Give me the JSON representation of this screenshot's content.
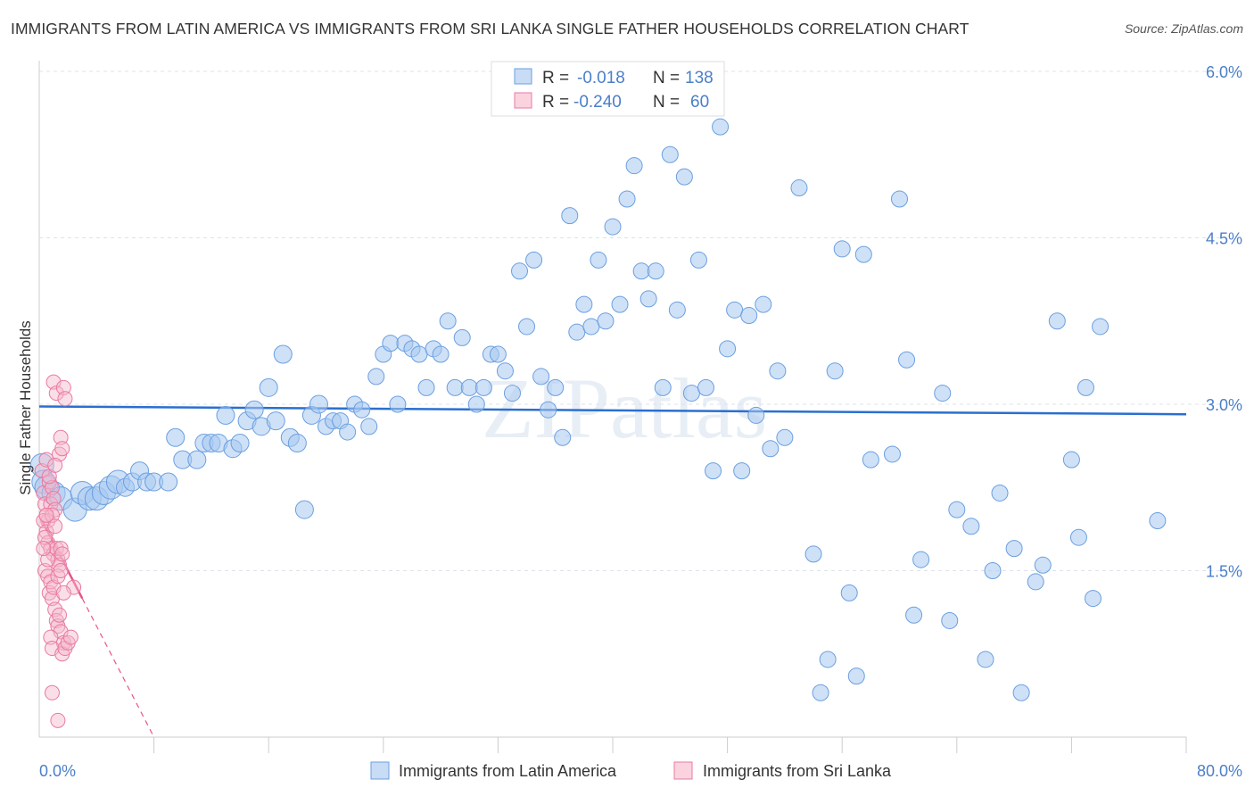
{
  "title": "IMMIGRANTS FROM LATIN AMERICA VS IMMIGRANTS FROM SRI LANKA SINGLE FATHER HOUSEHOLDS CORRELATION CHART",
  "source": "Source: ZipAtlas.com",
  "watermark": "ZIPatlas",
  "colors": {
    "blue": "#6a9fe0",
    "blue_fill": "#a8c8f0",
    "pink": "#e97aa0",
    "pink_fill": "#f5b8cc",
    "axis_text": "#4a7fc8"
  },
  "legend": {
    "blue": {
      "r_label": "R =",
      "r_value": "-0.018",
      "n_label": "N =",
      "n_value": "138"
    },
    "pink": {
      "r_label": "R =",
      "r_value": "-0.240",
      "n_label": "N =",
      "n_value": "60"
    }
  },
  "chart_data": {
    "type": "scatter",
    "title": "IMMIGRANTS FROM LATIN AMERICA VS IMMIGRANTS FROM SRI LANKA SINGLE FATHER HOUSEHOLDS CORRELATION CHART",
    "xlabel": "",
    "ylabel": "Single Father Households",
    "xlim": [
      0,
      80
    ],
    "ylim": [
      0,
      6.0
    ],
    "x_ticks": [
      "0.0%",
      "80.0%"
    ],
    "y_ticks": [
      {
        "value": 1.5,
        "label": "1.5%"
      },
      {
        "value": 3.0,
        "label": "3.0%"
      },
      {
        "value": 4.5,
        "label": "4.5%"
      },
      {
        "value": 6.0,
        "label": "6.0%"
      }
    ],
    "grid": true,
    "legend_position": "top-center",
    "series": [
      {
        "name": "Immigrants from Latin America",
        "color": "#6a9fe0",
        "trend": {
          "x": [
            0,
            80
          ],
          "y": [
            2.98,
            2.91
          ]
        },
        "points": [
          [
            0.2,
            2.45
          ],
          [
            0.3,
            2.3
          ],
          [
            0.5,
            2.25
          ],
          [
            1.0,
            2.2
          ],
          [
            1.5,
            2.15
          ],
          [
            2.5,
            2.05
          ],
          [
            3.0,
            2.2
          ],
          [
            3.5,
            2.15
          ],
          [
            4.0,
            2.15
          ],
          [
            4.5,
            2.2
          ],
          [
            5.0,
            2.25
          ],
          [
            5.5,
            2.3
          ],
          [
            6.0,
            2.25
          ],
          [
            6.5,
            2.3
          ],
          [
            7.0,
            2.4
          ],
          [
            7.5,
            2.3
          ],
          [
            8.0,
            2.3
          ],
          [
            9.0,
            2.3
          ],
          [
            9.5,
            2.7
          ],
          [
            10.0,
            2.5
          ],
          [
            11.0,
            2.5
          ],
          [
            11.5,
            2.65
          ],
          [
            12.0,
            2.65
          ],
          [
            12.5,
            2.65
          ],
          [
            13.5,
            2.6
          ],
          [
            14.0,
            2.65
          ],
          [
            13.0,
            2.9
          ],
          [
            14.5,
            2.85
          ],
          [
            15.0,
            2.95
          ],
          [
            15.5,
            2.8
          ],
          [
            16.0,
            3.15
          ],
          [
            16.5,
            2.85
          ],
          [
            17.0,
            3.45
          ],
          [
            17.5,
            2.7
          ],
          [
            18.0,
            2.65
          ],
          [
            18.5,
            2.05
          ],
          [
            19.0,
            2.9
          ],
          [
            19.5,
            3.0
          ],
          [
            20.0,
            2.8
          ],
          [
            20.5,
            2.85
          ],
          [
            21.0,
            2.85
          ],
          [
            21.5,
            2.75
          ],
          [
            22.0,
            3.0
          ],
          [
            22.5,
            2.95
          ],
          [
            23.0,
            2.8
          ],
          [
            23.5,
            3.25
          ],
          [
            24.0,
            3.45
          ],
          [
            24.5,
            3.55
          ],
          [
            25.0,
            3.0
          ],
          [
            25.5,
            3.55
          ],
          [
            26.0,
            3.5
          ],
          [
            26.5,
            3.45
          ],
          [
            27.0,
            3.15
          ],
          [
            27.5,
            3.5
          ],
          [
            28.0,
            3.45
          ],
          [
            28.5,
            3.75
          ],
          [
            29.0,
            3.15
          ],
          [
            29.5,
            3.6
          ],
          [
            30.0,
            3.15
          ],
          [
            30.5,
            3.0
          ],
          [
            31.0,
            3.15
          ],
          [
            31.5,
            3.45
          ],
          [
            32.0,
            3.45
          ],
          [
            32.5,
            3.3
          ],
          [
            33.0,
            3.1
          ],
          [
            33.5,
            4.2
          ],
          [
            34.0,
            3.7
          ],
          [
            34.5,
            4.3
          ],
          [
            35.0,
            3.25
          ],
          [
            35.5,
            2.95
          ],
          [
            36.0,
            3.15
          ],
          [
            36.5,
            2.7
          ],
          [
            37.0,
            4.7
          ],
          [
            37.5,
            3.65
          ],
          [
            38.0,
            3.9
          ],
          [
            38.5,
            3.7
          ],
          [
            39.0,
            4.3
          ],
          [
            39.5,
            3.75
          ],
          [
            40.0,
            4.6
          ],
          [
            40.5,
            3.9
          ],
          [
            41.0,
            4.85
          ],
          [
            41.5,
            5.15
          ],
          [
            42.0,
            4.2
          ],
          [
            42.5,
            3.95
          ],
          [
            43.0,
            4.2
          ],
          [
            43.5,
            3.15
          ],
          [
            44.0,
            5.25
          ],
          [
            44.5,
            3.85
          ],
          [
            45.0,
            5.05
          ],
          [
            45.5,
            3.1
          ],
          [
            46.0,
            4.3
          ],
          [
            46.5,
            3.15
          ],
          [
            47.0,
            2.4
          ],
          [
            47.5,
            5.5
          ],
          [
            48.0,
            3.5
          ],
          [
            48.5,
            3.85
          ],
          [
            49.0,
            2.4
          ],
          [
            49.5,
            3.8
          ],
          [
            50.0,
            2.9
          ],
          [
            50.5,
            3.9
          ],
          [
            51.0,
            2.6
          ],
          [
            51.5,
            3.3
          ],
          [
            52.0,
            2.7
          ],
          [
            53.0,
            4.95
          ],
          [
            54.0,
            1.65
          ],
          [
            54.5,
            0.4
          ],
          [
            55.0,
            0.7
          ],
          [
            55.5,
            3.3
          ],
          [
            56.0,
            4.4
          ],
          [
            56.5,
            1.3
          ],
          [
            57.0,
            0.55
          ],
          [
            57.5,
            4.35
          ],
          [
            58.0,
            2.5
          ],
          [
            59.5,
            2.55
          ],
          [
            60.0,
            4.85
          ],
          [
            60.5,
            3.4
          ],
          [
            61.0,
            1.1
          ],
          [
            61.5,
            1.6
          ],
          [
            63.0,
            3.1
          ],
          [
            63.5,
            1.05
          ],
          [
            64.0,
            2.05
          ],
          [
            65.0,
            1.9
          ],
          [
            66.0,
            0.7
          ],
          [
            66.5,
            1.5
          ],
          [
            67.0,
            2.2
          ],
          [
            68.0,
            1.7
          ],
          [
            68.5,
            0.4
          ],
          [
            69.5,
            1.4
          ],
          [
            70.0,
            1.55
          ],
          [
            71.0,
            3.75
          ],
          [
            72.0,
            2.5
          ],
          [
            72.5,
            1.8
          ],
          [
            73.0,
            3.15
          ],
          [
            73.5,
            1.25
          ],
          [
            74.0,
            3.7
          ],
          [
            78.0,
            1.95
          ]
        ]
      },
      {
        "name": "Immigrants from Sri Lanka",
        "color": "#e97aa0",
        "trend": {
          "x": [
            0.2,
            3.0
          ],
          "y": [
            1.95,
            1.25
          ]
        },
        "trend_extended": {
          "x": [
            3.0,
            8.0
          ],
          "y": [
            1.25,
            0.0
          ]
        },
        "points": [
          [
            0.2,
            2.4
          ],
          [
            0.3,
            2.2
          ],
          [
            0.4,
            2.1
          ],
          [
            0.5,
            2.0
          ],
          [
            0.6,
            1.95
          ],
          [
            0.7,
            2.3
          ],
          [
            0.8,
            2.1
          ],
          [
            0.9,
            2.25
          ],
          [
            1.0,
            2.15
          ],
          [
            1.1,
            2.05
          ],
          [
            0.3,
            1.95
          ],
          [
            0.5,
            1.85
          ],
          [
            0.6,
            1.75
          ],
          [
            0.8,
            1.7
          ],
          [
            1.0,
            1.65
          ],
          [
            1.2,
            1.7
          ],
          [
            1.3,
            1.6
          ],
          [
            1.4,
            1.55
          ],
          [
            1.5,
            1.7
          ],
          [
            1.6,
            1.65
          ],
          [
            0.4,
            1.5
          ],
          [
            0.6,
            1.45
          ],
          [
            0.7,
            1.3
          ],
          [
            0.9,
            1.25
          ],
          [
            1.1,
            1.15
          ],
          [
            1.2,
            1.05
          ],
          [
            1.3,
            1.0
          ],
          [
            1.4,
            1.1
          ],
          [
            1.5,
            0.95
          ],
          [
            1.7,
            0.85
          ],
          [
            0.8,
            0.9
          ],
          [
            0.9,
            0.8
          ],
          [
            1.6,
            0.75
          ],
          [
            1.8,
            0.8
          ],
          [
            2.0,
            0.85
          ],
          [
            2.2,
            0.9
          ],
          [
            2.4,
            1.35
          ],
          [
            0.9,
            0.4
          ],
          [
            1.3,
            0.15
          ],
          [
            1.0,
            3.2
          ],
          [
            1.2,
            3.1
          ],
          [
            1.4,
            2.55
          ],
          [
            1.5,
            2.7
          ],
          [
            1.6,
            2.6
          ],
          [
            1.7,
            3.15
          ],
          [
            1.8,
            3.05
          ],
          [
            0.5,
            2.5
          ],
          [
            0.7,
            2.35
          ],
          [
            0.9,
            2.0
          ],
          [
            1.1,
            1.9
          ],
          [
            0.4,
            1.8
          ],
          [
            0.6,
            1.6
          ],
          [
            0.8,
            1.4
          ],
          [
            1.0,
            1.35
          ],
          [
            1.3,
            1.45
          ],
          [
            1.5,
            1.5
          ],
          [
            1.7,
            1.3
          ],
          [
            0.3,
            1.7
          ],
          [
            0.5,
            2.0
          ],
          [
            1.1,
            2.45
          ]
        ]
      }
    ]
  },
  "bottom_legend": [
    {
      "label": "Immigrants from Latin America"
    },
    {
      "label": "Immigrants from Sri Lanka"
    }
  ]
}
